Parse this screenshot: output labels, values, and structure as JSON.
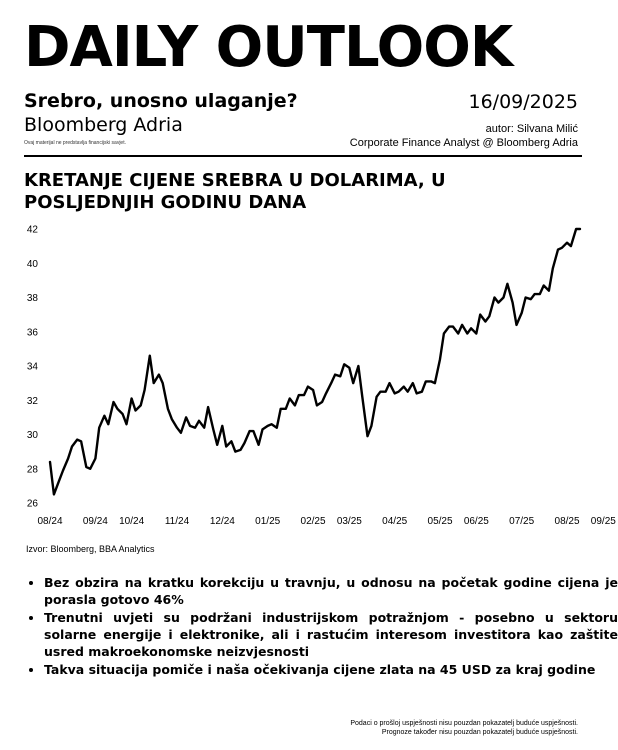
{
  "header": {
    "masthead": "DAILY OUTLOOK",
    "subtitle": "Srebro, unosno ulaganje?",
    "publisher": "Bloomberg Adria",
    "small_note": "Ovaj materijal ne predstavlja financijski savjet.",
    "date": "16/09/2025",
    "author": "autor: Silvana Milić",
    "author_role": "Corporate Finance Analyst @ Bloomberg Adria"
  },
  "chart_data": {
    "type": "line",
    "title": "KRETANJE CIJENE SREBRA U DOLARIMA, U POSLJEDNJIH GODINU DANA",
    "xlabel": "",
    "ylabel": "",
    "ylim": [
      26,
      42
    ],
    "yticks": [
      26,
      28,
      30,
      32,
      34,
      36,
      38,
      40,
      42
    ],
    "xlim": [
      "2024-08-05",
      "2025-09-18"
    ],
    "xticks": [
      {
        "label": "08/24",
        "date": "2024-08-05"
      },
      {
        "label": "09/24",
        "date": "2024-09-09"
      },
      {
        "label": "10/24",
        "date": "2024-10-07"
      },
      {
        "label": "11/24",
        "date": "2024-11-11"
      },
      {
        "label": "12/24",
        "date": "2024-12-16"
      },
      {
        "label": "01/25",
        "date": "2025-01-20"
      },
      {
        "label": "02/25",
        "date": "2025-02-24"
      },
      {
        "label": "03/25",
        "date": "2025-03-24"
      },
      {
        "label": "04/25",
        "date": "2025-04-28"
      },
      {
        "label": "05/25",
        "date": "2025-06-02"
      },
      {
        "label": "06/25",
        "date": "2025-06-30"
      },
      {
        "label": "07/25",
        "date": "2025-08-04"
      },
      {
        "label": "08/25",
        "date": "2025-09-08"
      },
      {
        "label": "09/25",
        "date": "2025-10-06"
      }
    ],
    "grid": false,
    "color": "#000000",
    "series": [
      {
        "name": "",
        "x": [
          "2024-08-05",
          "2024-08-08",
          "2024-08-12",
          "2024-08-15",
          "2024-08-19",
          "2024-08-22",
          "2024-08-26",
          "2024-08-29",
          "2024-09-02",
          "2024-09-05",
          "2024-09-09",
          "2024-09-12",
          "2024-09-16",
          "2024-09-19",
          "2024-09-23",
          "2024-09-26",
          "2024-09-30",
          "2024-10-03",
          "2024-10-07",
          "2024-10-10",
          "2024-10-14",
          "2024-10-17",
          "2024-10-21",
          "2024-10-24",
          "2024-10-28",
          "2024-10-31",
          "2024-11-04",
          "2024-11-07",
          "2024-11-11",
          "2024-11-14",
          "2024-11-18",
          "2024-11-21",
          "2024-11-25",
          "2024-11-28",
          "2024-12-02",
          "2024-12-05",
          "2024-12-09",
          "2024-12-12",
          "2024-12-16",
          "2024-12-19",
          "2024-12-23",
          "2024-12-26",
          "2024-12-30",
          "2025-01-02",
          "2025-01-06",
          "2025-01-09",
          "2025-01-13",
          "2025-01-16",
          "2025-01-20",
          "2025-01-23",
          "2025-01-27",
          "2025-01-30",
          "2025-02-03",
          "2025-02-06",
          "2025-02-10",
          "2025-02-13",
          "2025-02-17",
          "2025-02-20",
          "2025-02-24",
          "2025-02-27",
          "2025-03-03",
          "2025-03-06",
          "2025-03-10",
          "2025-03-13",
          "2025-03-17",
          "2025-03-20",
          "2025-03-24",
          "2025-03-27",
          "2025-03-31",
          "2025-04-03",
          "2025-04-07",
          "2025-04-10",
          "2025-04-14",
          "2025-04-17",
          "2025-04-21",
          "2025-04-24",
          "2025-04-28",
          "2025-05-01",
          "2025-05-05",
          "2025-05-08",
          "2025-05-12",
          "2025-05-15",
          "2025-05-19",
          "2025-05-22",
          "2025-05-26",
          "2025-05-29",
          "2025-06-02",
          "2025-06-05",
          "2025-06-09",
          "2025-06-12",
          "2025-06-16",
          "2025-06-19",
          "2025-06-23",
          "2025-06-26",
          "2025-06-30",
          "2025-07-03",
          "2025-07-07",
          "2025-07-10",
          "2025-07-14",
          "2025-07-17",
          "2025-07-21",
          "2025-07-24",
          "2025-07-28",
          "2025-07-31",
          "2025-08-04",
          "2025-08-07",
          "2025-08-11",
          "2025-08-14",
          "2025-08-18",
          "2025-08-21",
          "2025-08-25",
          "2025-08-28",
          "2025-09-01",
          "2025-09-04",
          "2025-09-08",
          "2025-09-11",
          "2025-09-15",
          "2025-09-18"
        ],
        "y": [
          28.4,
          26.5,
          27.3,
          27.9,
          28.6,
          29.3,
          29.7,
          29.6,
          28.1,
          28.0,
          28.6,
          30.4,
          31.1,
          30.6,
          31.9,
          31.5,
          31.2,
          30.6,
          32.1,
          31.4,
          31.7,
          32.6,
          34.6,
          33.0,
          33.5,
          33.0,
          31.5,
          30.9,
          30.4,
          30.1,
          31.0,
          30.5,
          30.4,
          30.8,
          30.4,
          31.6,
          30.3,
          29.4,
          30.5,
          29.3,
          29.6,
          29.0,
          29.1,
          29.5,
          30.2,
          30.2,
          29.4,
          30.3,
          30.5,
          30.6,
          30.4,
          31.5,
          31.5,
          32.1,
          31.7,
          32.3,
          32.3,
          32.8,
          32.6,
          31.7,
          31.9,
          32.4,
          33.0,
          33.5,
          33.4,
          34.1,
          33.9,
          33.0,
          34.0,
          32.2,
          29.9,
          30.5,
          32.2,
          32.5,
          32.5,
          33.0,
          32.4,
          32.5,
          32.8,
          32.5,
          33.0,
          32.4,
          32.5,
          33.1,
          33.1,
          33.0,
          34.4,
          35.9,
          36.3,
          36.3,
          35.9,
          36.4,
          35.9,
          36.2,
          35.9,
          37.0,
          36.6,
          36.9,
          38.0,
          37.7,
          38.0,
          38.8,
          37.7,
          36.4,
          37.1,
          38.0,
          37.9,
          38.2,
          38.2,
          38.7,
          38.4,
          39.7,
          40.8,
          40.9,
          41.2,
          41.0,
          42.0,
          42.0
        ]
      }
    ]
  },
  "source": "Izvor: Bloomberg, BBA Analytics",
  "bullets": [
    "Bez obzira na kratku korekciju u travnju, u odnosu na početak godine cijena je porasla gotovo 46%",
    "Trenutni uvjeti su podržani industrijskom potražnjom - posebno u sektoru solarne energije i elektronike, ali i rastućim interesom investitora kao zaštite usred makroekonomske neizvjesnosti",
    "Takva situacija pomiče i naša očekivanja cijene zlata na 45 USD za kraj godine"
  ],
  "footer": {
    "line1": "Podaci o prošloj uspješnosti nisu pouzdan pokazatelj buduće uspješnosti.",
    "line2": "Prognoze također nisu pouzdan pokazatelj buduće uspješnosti."
  }
}
